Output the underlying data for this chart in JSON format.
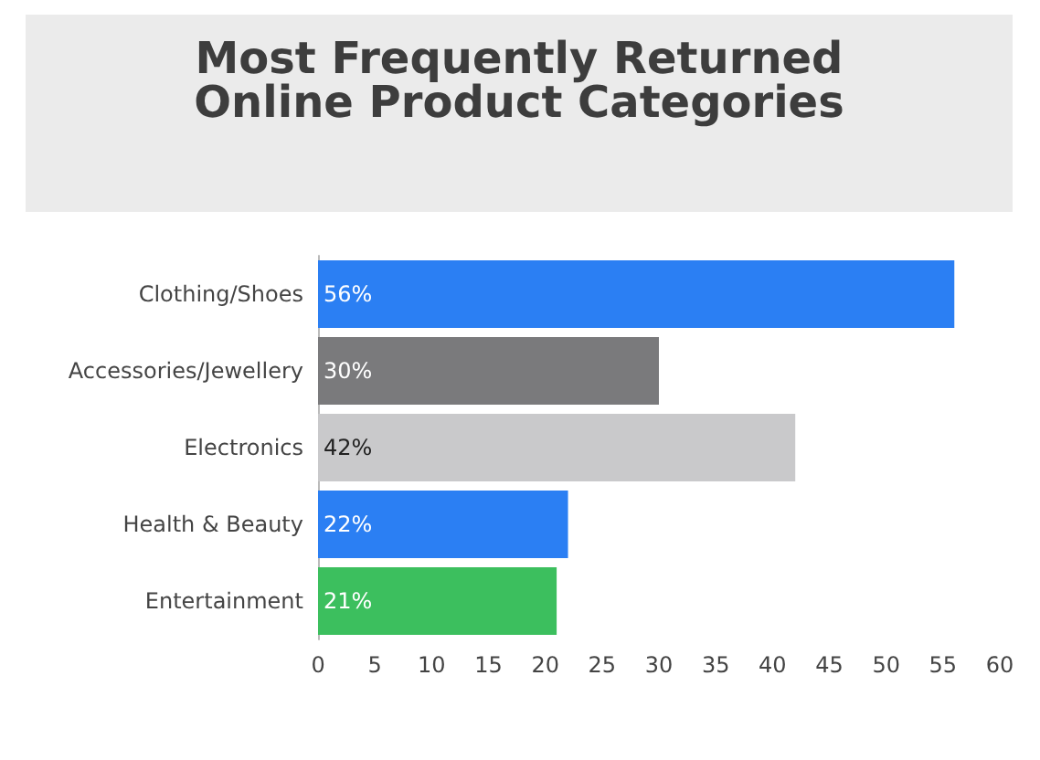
{
  "chart_data": {
    "type": "bar",
    "title": "Most Frequently Returned Online Product Categories",
    "orientation": "horizontal",
    "categories": [
      "Clothing/Shoes",
      "Accessories/Jewellery",
      "Electronics",
      "Health & Beauty",
      "Entertainment"
    ],
    "values": [
      56,
      30,
      42,
      22,
      21
    ],
    "colors": [
      "#2b7ff3",
      "#7a7a7c",
      "#c9c9cb",
      "#2b7ff3",
      "#3cbf5e"
    ],
    "value_labels": [
      "56%",
      "30%",
      "42%",
      "22%",
      "21%"
    ],
    "xlim": [
      0,
      60
    ],
    "xticks": [
      0,
      5,
      10,
      15,
      20,
      25,
      30,
      35,
      40,
      45,
      50,
      55,
      60
    ],
    "grid": false
  }
}
